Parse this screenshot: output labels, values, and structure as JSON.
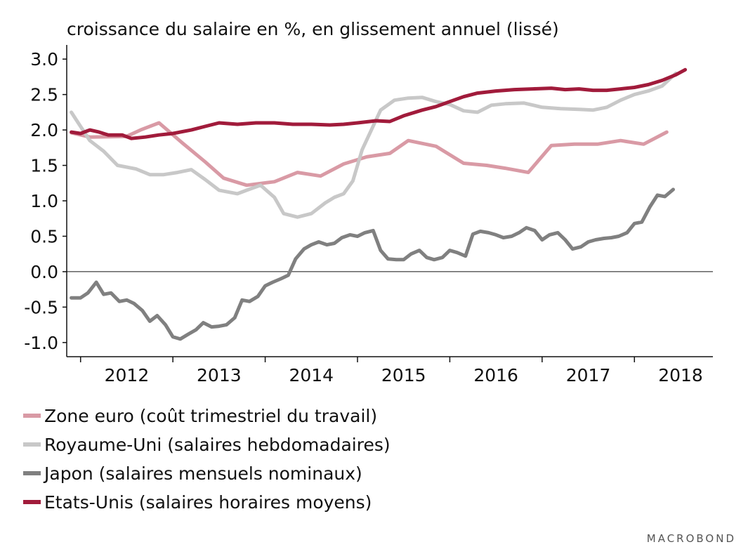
{
  "chart_data": {
    "type": "line",
    "title": "croissance du salaire en %, en glissement annuel (lissé)",
    "xlabel": "",
    "ylabel": "",
    "x_range": [
      2011.85,
      2018.85
    ],
    "ylim": [
      -1.2,
      3.2
    ],
    "y_ticks": [
      3.0,
      2.5,
      2.0,
      1.5,
      1.0,
      0.5,
      0.0,
      -0.5,
      -1.0
    ],
    "y_tick_labels": [
      "3.0",
      "2.5",
      "2.0",
      "1.5",
      "1.0",
      "0.5",
      "0.0",
      "-0.5",
      "-1.0"
    ],
    "x_tick_labels": [
      {
        "label": "2012",
        "x": 2012
      },
      {
        "label": "2013",
        "x": 2013
      },
      {
        "label": "2014",
        "x": 2014
      },
      {
        "label": "2015",
        "x": 2015
      },
      {
        "label": "2016",
        "x": 2016
      },
      {
        "label": "2017",
        "x": 2017
      },
      {
        "label": "2018",
        "x": 2018
      }
    ],
    "grid": false,
    "zero_line": true,
    "legend_position": "bottom",
    "series": [
      {
        "name": "Zone euro (coût trimestriel du travail)",
        "color": "#d99aa5",
        "x": [
          2011.9,
          2012.1,
          2012.5,
          2012.65,
          2012.85,
          2013.1,
          2013.35,
          2013.55,
          2013.8,
          2014.1,
          2014.35,
          2014.6,
          2014.85,
          2015.1,
          2015.35,
          2015.55,
          2015.85,
          2016.15,
          2016.4,
          2016.6,
          2016.85,
          2017.1,
          2017.35,
          2017.6,
          2017.85,
          2018.1,
          2018.35
        ],
        "values": [
          1.96,
          1.9,
          1.91,
          2.0,
          2.1,
          1.82,
          1.55,
          1.32,
          1.22,
          1.27,
          1.4,
          1.35,
          1.52,
          1.62,
          1.67,
          1.85,
          1.77,
          1.53,
          1.5,
          1.46,
          1.4,
          1.78,
          1.8,
          1.8,
          1.85,
          1.8,
          1.97
        ]
      },
      {
        "name": "Royaume-Uni (salaires hebdomadaires)",
        "color": "#c8c8c8",
        "x": [
          2011.9,
          2011.95,
          2012.1,
          2012.25,
          2012.4,
          2012.6,
          2012.75,
          2012.9,
          2013.05,
          2013.2,
          2013.35,
          2013.5,
          2013.7,
          2013.8,
          2013.95,
          2014.1,
          2014.2,
          2014.35,
          2014.5,
          2014.65,
          2014.75,
          2014.85,
          2014.95,
          2015.05,
          2015.25,
          2015.4,
          2015.55,
          2015.7,
          2015.85,
          2016.0,
          2016.15,
          2016.3,
          2016.45,
          2016.6,
          2016.8,
          2017.0,
          2017.2,
          2017.4,
          2017.55,
          2017.7,
          2017.85,
          2018.0,
          2018.15,
          2018.3,
          2018.45
        ],
        "values": [
          2.25,
          2.15,
          1.85,
          1.7,
          1.5,
          1.45,
          1.37,
          1.37,
          1.4,
          1.44,
          1.3,
          1.15,
          1.1,
          1.15,
          1.22,
          1.05,
          0.82,
          0.77,
          0.82,
          0.97,
          1.05,
          1.1,
          1.28,
          1.72,
          2.28,
          2.42,
          2.45,
          2.46,
          2.4,
          2.36,
          2.27,
          2.25,
          2.35,
          2.37,
          2.38,
          2.32,
          2.3,
          2.29,
          2.28,
          2.32,
          2.42,
          2.5,
          2.55,
          2.62,
          2.8
        ]
      },
      {
        "name": "Japon (salaires mensuels nominaux)",
        "color": "#808080",
        "x": [
          2011.9,
          2012.0,
          2012.08,
          2012.17,
          2012.25,
          2012.33,
          2012.42,
          2012.5,
          2012.58,
          2012.67,
          2012.75,
          2012.83,
          2012.92,
          2013.0,
          2013.08,
          2013.17,
          2013.25,
          2013.33,
          2013.42,
          2013.5,
          2013.58,
          2013.67,
          2013.75,
          2013.83,
          2013.92,
          2014.0,
          2014.08,
          2014.17,
          2014.25,
          2014.33,
          2014.42,
          2014.5,
          2014.58,
          2014.67,
          2014.75,
          2014.83,
          2014.92,
          2015.0,
          2015.08,
          2015.17,
          2015.25,
          2015.33,
          2015.42,
          2015.5,
          2015.58,
          2015.67,
          2015.75,
          2015.83,
          2015.92,
          2016.0,
          2016.08,
          2016.17,
          2016.25,
          2016.33,
          2016.42,
          2016.5,
          2016.58,
          2016.67,
          2016.75,
          2016.83,
          2016.92,
          2017.0,
          2017.08,
          2017.17,
          2017.25,
          2017.33,
          2017.42,
          2017.5,
          2017.58,
          2017.67,
          2017.75,
          2017.83,
          2017.92,
          2018.0,
          2018.08,
          2018.17,
          2018.25,
          2018.33,
          2018.42
        ],
        "values": [
          -0.37,
          -0.37,
          -0.3,
          -0.15,
          -0.32,
          -0.3,
          -0.42,
          -0.4,
          -0.45,
          -0.55,
          -0.7,
          -0.62,
          -0.75,
          -0.92,
          -0.95,
          -0.88,
          -0.82,
          -0.72,
          -0.78,
          -0.77,
          -0.75,
          -0.65,
          -0.4,
          -0.42,
          -0.35,
          -0.2,
          -0.15,
          -0.1,
          -0.05,
          0.18,
          0.32,
          0.38,
          0.42,
          0.38,
          0.4,
          0.48,
          0.52,
          0.5,
          0.55,
          0.58,
          0.3,
          0.18,
          0.17,
          0.17,
          0.25,
          0.3,
          0.2,
          0.17,
          0.2,
          0.3,
          0.27,
          0.22,
          0.53,
          0.57,
          0.55,
          0.52,
          0.48,
          0.5,
          0.55,
          0.62,
          0.58,
          0.45,
          0.52,
          0.55,
          0.45,
          0.32,
          0.35,
          0.42,
          0.45,
          0.47,
          0.48,
          0.5,
          0.55,
          0.68,
          0.7,
          0.92,
          1.08,
          1.06,
          1.16
        ]
      },
      {
        "name": "Etats-Unis (salaires horaires moyens)",
        "color": "#a11b3b",
        "x": [
          2011.9,
          2012.0,
          2012.1,
          2012.2,
          2012.3,
          2012.45,
          2012.55,
          2012.7,
          2012.85,
          2013.0,
          2013.2,
          2013.35,
          2013.5,
          2013.7,
          2013.9,
          2014.1,
          2014.3,
          2014.5,
          2014.7,
          2014.85,
          2015.0,
          2015.2,
          2015.35,
          2015.5,
          2015.7,
          2015.85,
          2016.0,
          2016.15,
          2016.3,
          2016.5,
          2016.7,
          2016.9,
          2017.1,
          2017.25,
          2017.4,
          2017.55,
          2017.7,
          2017.85,
          2018.0,
          2018.15,
          2018.3,
          2018.45,
          2018.55
        ],
        "values": [
          1.97,
          1.95,
          2.0,
          1.97,
          1.93,
          1.93,
          1.88,
          1.9,
          1.93,
          1.95,
          2.0,
          2.05,
          2.1,
          2.08,
          2.1,
          2.1,
          2.08,
          2.08,
          2.07,
          2.08,
          2.1,
          2.13,
          2.12,
          2.2,
          2.28,
          2.33,
          2.4,
          2.47,
          2.52,
          2.55,
          2.57,
          2.58,
          2.59,
          2.57,
          2.58,
          2.56,
          2.56,
          2.58,
          2.6,
          2.64,
          2.7,
          2.78,
          2.85
        ]
      }
    ]
  },
  "watermark": "MACROBOND"
}
